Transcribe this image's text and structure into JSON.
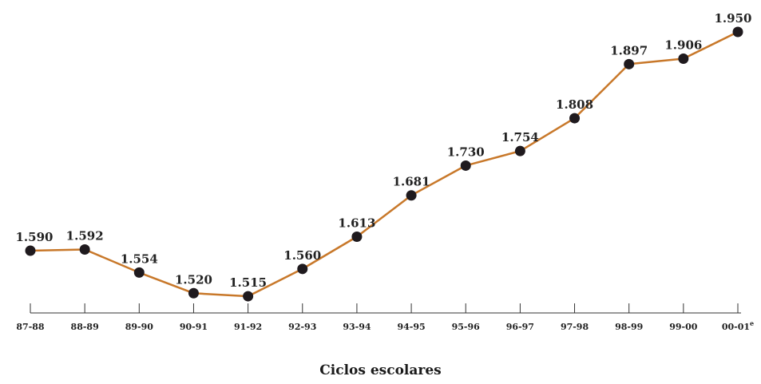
{
  "chart_data": {
    "type": "line",
    "categories": [
      "87-88",
      "88-89",
      "89-90",
      "90-91",
      "91-92",
      "92-93",
      "93-94",
      "94-95",
      "95-96",
      "96-97",
      "97-98",
      "98-99",
      "99-00",
      "00-01"
    ],
    "category_superscripts": [
      "",
      "",
      "",
      "",
      "",
      "",
      "",
      "",
      "",
      "",
      "",
      "",
      "",
      "e"
    ],
    "series": [
      {
        "values": [
          1590,
          1592,
          1554,
          1520,
          1515,
          1560,
          1613,
          1681,
          1730,
          1754,
          1808,
          1897,
          1906,
          1950
        ],
        "labels": [
          "1.590",
          "1.592",
          "1.554",
          "1.520",
          "1.515",
          "1.560",
          "1.613",
          "1.681",
          "1.730",
          "1.754",
          "1.808",
          "1.897",
          "1.906",
          "1.950"
        ]
      }
    ],
    "title": "",
    "xlabel": "Ciclos escolares",
    "ylabel": "",
    "grid": false,
    "colors": {
      "line": "#C8782A",
      "marker": "#1F1A1E",
      "axis": "#333333"
    }
  }
}
